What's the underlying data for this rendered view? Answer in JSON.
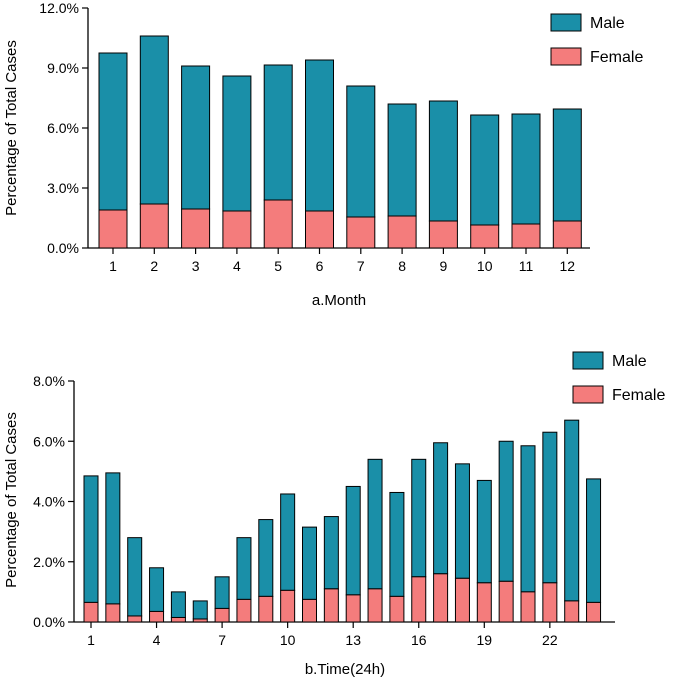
{
  "chart_data": [
    {
      "type": "bar",
      "stacked": true,
      "title": "",
      "xlabel": "a.Month",
      "ylabel": "Percentage of Total Cases",
      "ylim": [
        0,
        12
      ],
      "y_ticks": [
        "0.0%",
        "3.0%",
        "6.0%",
        "9.0%",
        "12.0%"
      ],
      "y_tick_values": [
        0,
        3,
        6,
        9,
        12
      ],
      "categories": [
        "1",
        "2",
        "3",
        "4",
        "5",
        "6",
        "7",
        "8",
        "9",
        "10",
        "11",
        "12"
      ],
      "x_tick_labels": [
        "1",
        "2",
        "3",
        "4",
        "5",
        "6",
        "7",
        "8",
        "9",
        "10",
        "11",
        "12"
      ],
      "legend_position": "top-right",
      "series": [
        {
          "name": "Female",
          "color": "#f47c7c",
          "values": [
            1.9,
            2.2,
            1.95,
            1.85,
            2.4,
            1.85,
            1.55,
            1.6,
            1.35,
            1.15,
            1.2,
            1.35
          ]
        },
        {
          "name": "Male",
          "color": "#1a8fa8",
          "values": [
            7.85,
            8.4,
            7.15,
            6.75,
            6.75,
            7.55,
            6.55,
            5.6,
            6.0,
            5.5,
            5.5,
            5.6
          ]
        }
      ],
      "legend": [
        "Male",
        "Female"
      ]
    },
    {
      "type": "bar",
      "stacked": true,
      "title": "",
      "xlabel": "b.Time(24h)",
      "ylabel": "Percentage of Total Cases",
      "ylim": [
        0,
        8
      ],
      "y_ticks": [
        "0.0%",
        "2.0%",
        "4.0%",
        "6.0%",
        "8.0%"
      ],
      "y_tick_values": [
        0,
        2,
        4,
        6,
        8
      ],
      "categories": [
        "1",
        "2",
        "3",
        "4",
        "5",
        "6",
        "7",
        "8",
        "9",
        "10",
        "11",
        "12",
        "13",
        "14",
        "15",
        "16",
        "17",
        "18",
        "19",
        "20",
        "21",
        "22",
        "23",
        "24"
      ],
      "x_tick_labels": [
        "1",
        "4",
        "7",
        "10",
        "13",
        "16",
        "19",
        "22"
      ],
      "x_tick_categories": [
        "1",
        "4",
        "7",
        "10",
        "13",
        "16",
        "19",
        "22"
      ],
      "legend_position": "top-right",
      "series": [
        {
          "name": "Female",
          "color": "#f47c7c",
          "values": [
            0.65,
            0.6,
            0.2,
            0.35,
            0.15,
            0.1,
            0.45,
            0.75,
            0.85,
            1.05,
            0.75,
            1.1,
            0.9,
            1.1,
            0.85,
            1.5,
            1.6,
            1.45,
            1.3,
            1.35,
            1.0,
            1.3,
            0.7,
            0.65
          ]
        },
        {
          "name": "Male",
          "color": "#1a8fa8",
          "values": [
            4.2,
            4.35,
            2.6,
            1.45,
            0.85,
            0.6,
            1.05,
            2.05,
            2.55,
            3.2,
            2.4,
            2.4,
            3.6,
            4.3,
            3.45,
            3.9,
            4.35,
            3.8,
            3.4,
            4.65,
            4.85,
            5.0,
            6.0,
            4.1
          ]
        }
      ],
      "legend": [
        "Male",
        "Female"
      ]
    }
  ]
}
